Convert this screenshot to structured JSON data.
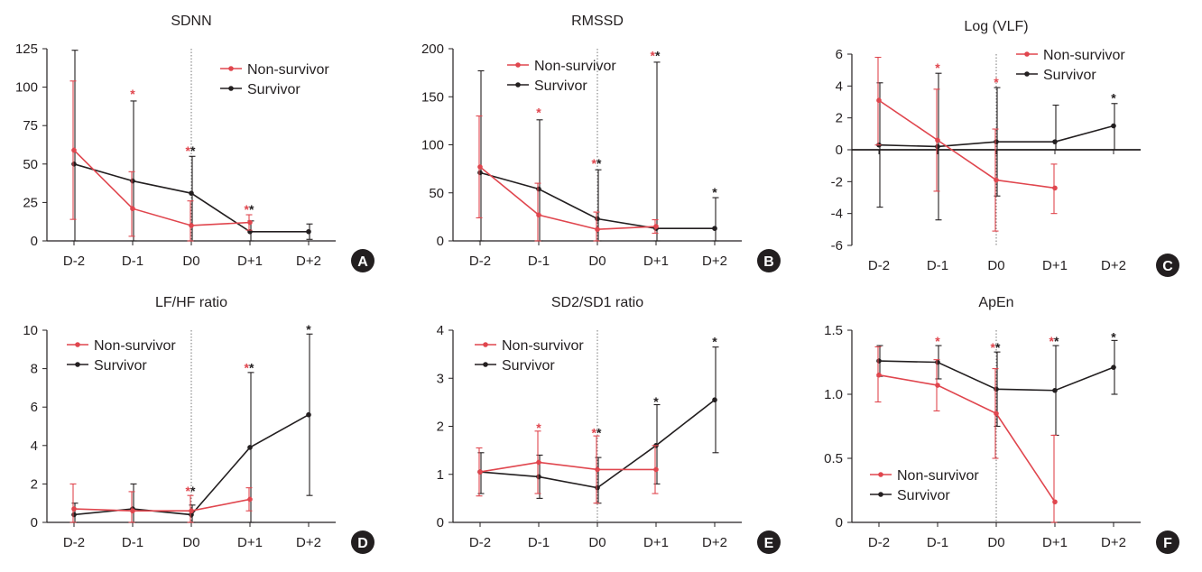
{
  "chart_data": [
    {
      "id": "A",
      "type": "line",
      "title": "SDNN",
      "categories": [
        "D-2",
        "D-1",
        "D0",
        "D+1",
        "D+2"
      ],
      "ylim": [
        0,
        125
      ],
      "yticks": [
        "0",
        "25",
        "50",
        "75",
        "100",
        "125"
      ],
      "legend_position": "top-right",
      "series": [
        {
          "name": "Non-survivor",
          "color": "#e0464e",
          "values": [
            59,
            21,
            10,
            12,
            null
          ],
          "upper": [
            104,
            45,
            26,
            17,
            null
          ],
          "lower": [
            14,
            3,
            0,
            7,
            null
          ]
        },
        {
          "name": "Survivor",
          "color": "#231f20",
          "values": [
            50,
            39,
            31,
            6,
            6
          ],
          "upper": [
            124,
            91,
            55,
            13,
            11
          ],
          "lower": [
            0,
            0,
            0,
            0,
            1
          ]
        }
      ],
      "annotations": [
        {
          "index": 1,
          "y": 95,
          "marks": "*"
        },
        {
          "index": 2,
          "y": 58,
          "marks": "**"
        },
        {
          "index": 3,
          "y": 20,
          "marks": "**"
        }
      ]
    },
    {
      "id": "B",
      "type": "line",
      "title": "RMSSD",
      "categories": [
        "D-2",
        "D-1",
        "D0",
        "D+1",
        "D+2"
      ],
      "ylim": [
        0,
        200
      ],
      "yticks": [
        "0",
        "50",
        "100",
        "150",
        "200"
      ],
      "legend_position": "top-right",
      "series": [
        {
          "name": "Non-survivor",
          "color": "#e0464e",
          "values": [
            77,
            27,
            12,
            15,
            null
          ],
          "upper": [
            130,
            60,
            30,
            22,
            null
          ],
          "lower": [
            24,
            0,
            0,
            8,
            null
          ]
        },
        {
          "name": "Survivor",
          "color": "#231f20",
          "values": [
            71,
            54,
            23,
            13,
            13
          ],
          "upper": [
            177,
            126,
            74,
            186,
            45
          ],
          "lower": [
            0,
            0,
            0,
            0,
            0
          ]
        }
      ],
      "annotations": [
        {
          "index": 1,
          "y": 133,
          "marks": "*"
        },
        {
          "index": 2,
          "y": 80,
          "marks": "**"
        },
        {
          "index": 3,
          "y": 192,
          "marks": "**"
        },
        {
          "index": 4,
          "y": 50,
          "marks": "*"
        }
      ]
    },
    {
      "id": "C",
      "type": "line",
      "title": "Log (VLF)",
      "categories": [
        "D-2",
        "D-1",
        "D0",
        "D+1",
        "D+2"
      ],
      "ylim": [
        -6,
        6
      ],
      "yticks": [
        "-6",
        "-4",
        "-2",
        "0",
        "2",
        "4",
        "6"
      ],
      "legend_position": "top-right",
      "series": [
        {
          "name": "Non-survivor",
          "color": "#e0464e",
          "values": [
            3.1,
            0.6,
            -1.9,
            -2.4,
            null
          ],
          "upper": [
            5.8,
            3.8,
            1.3,
            -0.9,
            null
          ],
          "lower": [
            0.3,
            -2.6,
            -5.1,
            -4.0,
            null
          ]
        },
        {
          "name": "Survivor",
          "color": "#231f20",
          "values": [
            0.3,
            0.2,
            0.5,
            0.5,
            1.5
          ],
          "upper": [
            4.2,
            4.8,
            3.9,
            2.8,
            2.9
          ],
          "lower": [
            -3.6,
            -4.4,
            -2.9,
            0.0,
            0.0
          ]
        }
      ],
      "annotations": [
        {
          "index": 1,
          "y": 5.1,
          "marks": "*"
        },
        {
          "index": 2,
          "y": 4.2,
          "marks": "*"
        },
        {
          "index": 4,
          "y": 3.2,
          "marks": "*"
        }
      ]
    },
    {
      "id": "D",
      "type": "line",
      "title": "LF/HF ratio",
      "categories": [
        "D-2",
        "D-1",
        "D0",
        "D+1",
        "D+2"
      ],
      "ylim": [
        0,
        10
      ],
      "yticks": [
        "0",
        "2",
        "4",
        "6",
        "8",
        "10"
      ],
      "legend_position": "top-left",
      "series": [
        {
          "name": "Non-survivor",
          "color": "#e0464e",
          "values": [
            0.7,
            0.6,
            0.6,
            1.2,
            null
          ],
          "upper": [
            2.0,
            1.6,
            1.4,
            1.8,
            null
          ],
          "lower": [
            0.0,
            0.0,
            0.0,
            0.6,
            null
          ]
        },
        {
          "name": "Survivor",
          "color": "#231f20",
          "values": [
            0.4,
            0.7,
            0.4,
            3.9,
            5.6
          ],
          "upper": [
            1.0,
            2.0,
            0.9,
            7.8,
            9.8
          ],
          "lower": [
            0.0,
            0.0,
            0.0,
            0.0,
            1.4
          ]
        }
      ],
      "annotations": [
        {
          "index": 2,
          "y": 1.6,
          "marks": "**"
        },
        {
          "index": 3,
          "y": 8.0,
          "marks": "**"
        },
        {
          "index": 4,
          "y": 10.0,
          "marks": "*"
        }
      ]
    },
    {
      "id": "E",
      "type": "line",
      "title": "SD2/SD1 ratio",
      "categories": [
        "D-2",
        "D-1",
        "D0",
        "D+1",
        "D+2"
      ],
      "ylim": [
        0,
        4
      ],
      "yticks": [
        "0",
        "1",
        "2",
        "3",
        "4"
      ],
      "legend_position": "top-left",
      "series": [
        {
          "name": "Non-survivor",
          "color": "#e0464e",
          "values": [
            1.05,
            1.25,
            1.1,
            1.1,
            null
          ],
          "upper": [
            1.55,
            1.9,
            1.8,
            1.6,
            null
          ],
          "lower": [
            0.55,
            0.6,
            0.4,
            0.6,
            null
          ]
        },
        {
          "name": "Survivor",
          "color": "#231f20",
          "values": [
            1.05,
            0.95,
            0.72,
            1.6,
            2.55
          ],
          "upper": [
            1.45,
            1.4,
            1.35,
            2.45,
            3.65
          ],
          "lower": [
            0.6,
            0.5,
            0.4,
            0.8,
            1.45
          ]
        }
      ],
      "annotations": [
        {
          "index": 1,
          "y": 1.95,
          "marks": "*"
        },
        {
          "index": 2,
          "y": 1.85,
          "marks": "**"
        },
        {
          "index": 3,
          "y": 2.5,
          "marks": "*"
        },
        {
          "index": 4,
          "y": 3.75,
          "marks": "*"
        }
      ]
    },
    {
      "id": "F",
      "type": "line",
      "title": "ApEn",
      "categories": [
        "D-2",
        "D-1",
        "D0",
        "D+1",
        "D+2"
      ],
      "ylim": [
        0,
        1.5
      ],
      "yticks": [
        "0",
        "0.5",
        "1.0",
        "1.5"
      ],
      "legend_position": "bottom-left",
      "series": [
        {
          "name": "Non-survivor",
          "color": "#e0464e",
          "values": [
            1.15,
            1.07,
            0.85,
            0.16,
            null
          ],
          "upper": [
            1.37,
            1.27,
            1.2,
            0.68,
            null
          ],
          "lower": [
            0.94,
            0.87,
            0.5,
            0.0,
            null
          ]
        },
        {
          "name": "Survivor",
          "color": "#231f20",
          "values": [
            1.26,
            1.25,
            1.04,
            1.03,
            1.21
          ],
          "upper": [
            1.38,
            1.38,
            1.33,
            1.38,
            1.42
          ],
          "lower": [
            1.14,
            1.12,
            0.75,
            0.68,
            1.0
          ]
        }
      ],
      "annotations": [
        {
          "index": 1,
          "y": 1.41,
          "marks": "*"
        },
        {
          "index": 2,
          "y": 1.36,
          "marks": "**"
        },
        {
          "index": 3,
          "y": 1.41,
          "marks": "**"
        },
        {
          "index": 4,
          "y": 1.44,
          "marks": "*"
        }
      ]
    }
  ],
  "colors": {
    "non_survivor": "#e0464e",
    "survivor": "#231f20",
    "axis": "#231f20",
    "badge": "#231f20"
  }
}
